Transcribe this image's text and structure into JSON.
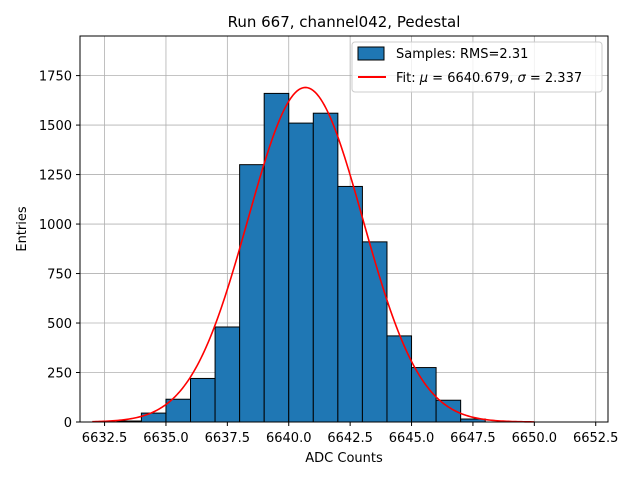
{
  "chart_data": {
    "type": "histogram",
    "title": "Run 667, channel042, Pedestal",
    "xlabel": "ADC Counts",
    "ylabel": "Entries",
    "xlim": [
      6631.5,
      6653.0
    ],
    "ylim": [
      0,
      1950
    ],
    "xticks": [
      6632.5,
      6635.0,
      6637.5,
      6640.0,
      6642.5,
      6645.0,
      6647.5,
      6650.0,
      6652.5
    ],
    "xtick_labels": [
      "6632.5",
      "6635.0",
      "6637.5",
      "6640.0",
      "6642.5",
      "6645.0",
      "6647.5",
      "6650.0",
      "6652.5"
    ],
    "yticks": [
      0,
      250,
      500,
      750,
      1000,
      1250,
      1500,
      1750
    ],
    "ytick_labels": [
      "0",
      "250",
      "500",
      "750",
      "1000",
      "1250",
      "1500",
      "1750"
    ],
    "grid": true,
    "legend_position": "top-right",
    "histogram": {
      "name": "Samples: RMS=2.31",
      "color": "#1f77b4",
      "edge_color": "#000000",
      "bin_edges": [
        6632,
        6633,
        6634,
        6635,
        6636,
        6637,
        6638,
        6639,
        6640,
        6641,
        6642,
        6643,
        6644,
        6645,
        6646,
        6647,
        6648,
        6649,
        6650,
        6651,
        6652
      ],
      "counts": [
        0,
        5,
        45,
        115,
        220,
        480,
        1300,
        1660,
        1510,
        1560,
        1190,
        910,
        435,
        275,
        110,
        15,
        0,
        0,
        0,
        0
      ]
    },
    "fit": {
      "name": "Fit: μ = 6640.679, σ = 2.337",
      "legend_prefix": "Fit: ",
      "legend_mu_symbol": "μ",
      "legend_mu_text": " = 6640.679, ",
      "legend_sigma_symbol": "σ",
      "legend_sigma_text": " = 2.337",
      "color": "#ff0000",
      "type": "gaussian",
      "mu": 6640.679,
      "sigma": 2.337,
      "amplitude": 1690,
      "x_range": [
        6632,
        6650
      ]
    }
  }
}
